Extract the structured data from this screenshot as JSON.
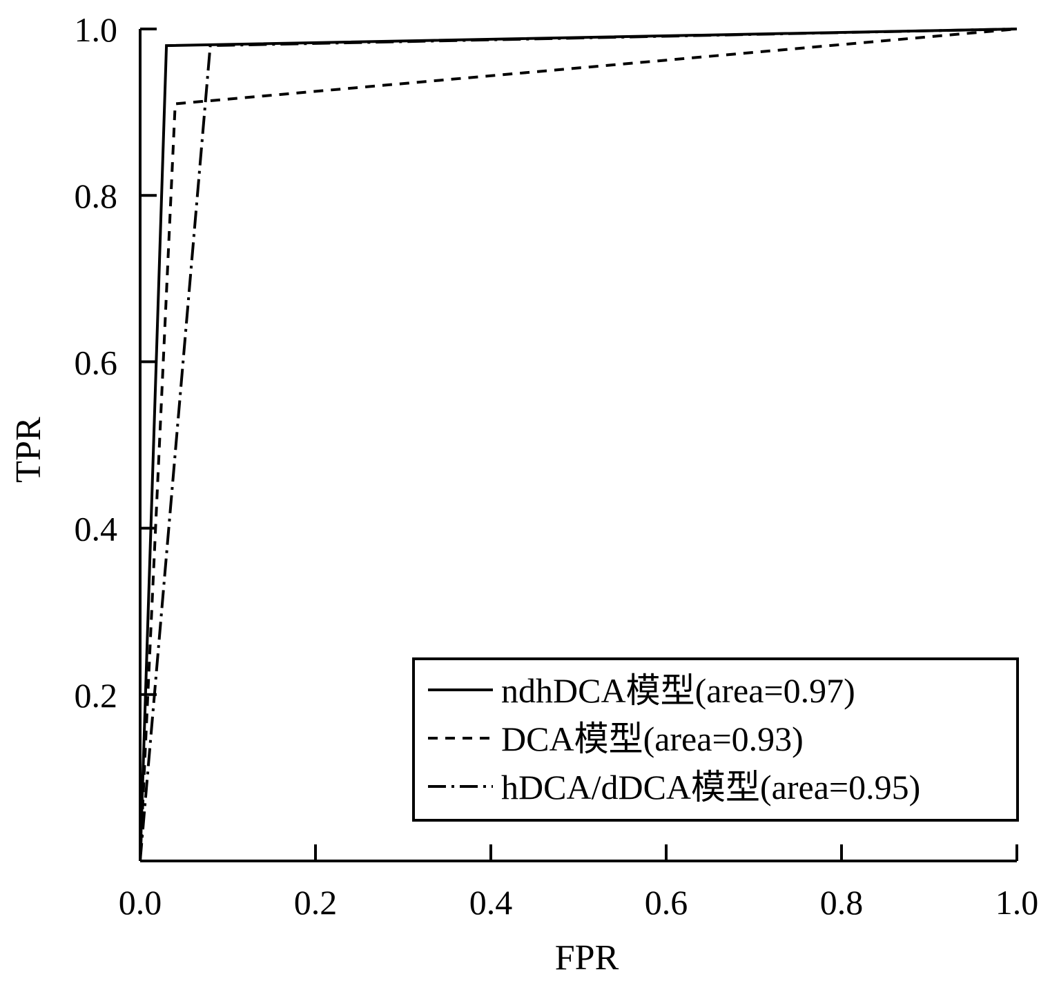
{
  "chart_data": {
    "type": "line",
    "title": "",
    "xlabel": "FPR",
    "ylabel": "TPR",
    "xlim": [
      0,
      1
    ],
    "ylim": [
      0,
      1
    ],
    "xticks": [
      "0.0",
      "0.2",
      "0.4",
      "0.6",
      "0.8",
      "1.0"
    ],
    "yticks": [
      "0.2",
      "0.4",
      "0.6",
      "0.8",
      "1.0"
    ],
    "grid": false,
    "legend_position": "bottom-right",
    "series": [
      {
        "name": "ndhDCA模型(area=0.97)",
        "style": "solid",
        "x": [
          0.0,
          0.03,
          1.0
        ],
        "y": [
          0.0,
          0.98,
          1.0
        ]
      },
      {
        "name": "DCA模型(area=0.93)",
        "style": "dashed",
        "x": [
          0.0,
          0.04,
          1.0
        ],
        "y": [
          0.0,
          0.91,
          1.0
        ]
      },
      {
        "name": "hDCA/dDCA模型(area=0.95)",
        "style": "dashdot",
        "x": [
          0.0,
          0.08,
          1.0
        ],
        "y": [
          0.0,
          0.98,
          1.0
        ]
      }
    ]
  }
}
